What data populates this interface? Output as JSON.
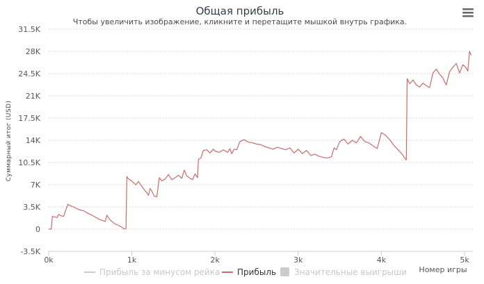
{
  "chart_data": {
    "type": "line",
    "title": "Общая прибыль",
    "subtitle": "Чтобы увеличить изображение, кликните и перетащите мышкой внутрь графика.",
    "ylabel": "Суммарный итог (USD)",
    "xlabel": "Номер игры",
    "ylim": [
      -3500,
      31500
    ],
    "xlim": [
      0,
      5100
    ],
    "y_ticks": [
      -3500,
      0,
      3500,
      7000,
      10500,
      14000,
      17500,
      21000,
      24500,
      28000,
      31500
    ],
    "y_tick_labels": [
      "-3.5K",
      "0",
      "3.5K",
      "7K",
      "10.5K",
      "14K",
      "17.5K",
      "21K",
      "24.5K",
      "28K",
      "31.5K"
    ],
    "x_ticks": [
      0,
      1000,
      2000,
      3000,
      4000,
      5000
    ],
    "x_tick_labels": [
      "0k",
      "1k",
      "2k",
      "3k",
      "4k",
      "5k"
    ],
    "grid": "horizontal dotted",
    "legend_position": "bottom",
    "legend": [
      {
        "label": "Прибыль за минусом рейка",
        "active": false,
        "marker": "line"
      },
      {
        "label": "Прибыль",
        "active": true,
        "marker": "line"
      },
      {
        "label": "Значительные выигрыши",
        "active": false,
        "marker": "square"
      }
    ],
    "series": [
      {
        "name": "Прибыль",
        "color": "#c96b6b",
        "x": [
          0,
          30,
          45,
          80,
          100,
          120,
          150,
          180,
          200,
          230,
          260,
          300,
          340,
          380,
          420,
          470,
          520,
          560,
          600,
          640,
          680,
          700,
          730,
          760,
          800,
          840,
          880,
          910,
          930,
          940,
          960,
          990,
          1020,
          1050,
          1080,
          1110,
          1140,
          1160,
          1180,
          1200,
          1220,
          1240,
          1270,
          1300,
          1330,
          1360,
          1400,
          1440,
          1480,
          1520,
          1560,
          1600,
          1630,
          1660,
          1700,
          1730,
          1760,
          1790,
          1800,
          1830,
          1860,
          1900,
          1940,
          1980,
          2000,
          2050,
          2100,
          2150,
          2180,
          2200,
          2230,
          2260,
          2300,
          2350,
          2400,
          2450,
          2500,
          2550,
          2600,
          2650,
          2700,
          2750,
          2800,
          2850,
          2900,
          2950,
          3000,
          3050,
          3100,
          3150,
          3200,
          3250,
          3300,
          3350,
          3400,
          3430,
          3460,
          3500,
          3550,
          3600,
          3650,
          3700,
          3750,
          3800,
          3850,
          3900,
          3950,
          4000,
          4050,
          4100,
          4150,
          4200,
          4250,
          4280,
          4300,
          4310,
          4340,
          4380,
          4420,
          4460,
          4500,
          4540,
          4580,
          4620,
          4660,
          4700,
          4740,
          4780,
          4820,
          4860,
          4900,
          4940,
          4980,
          5020,
          5040,
          5060,
          5080
        ],
        "values": [
          0,
          0,
          2000,
          1900,
          1800,
          2300,
          2100,
          2000,
          2800,
          3900,
          3700,
          3500,
          3200,
          3000,
          2900,
          2500,
          2200,
          1900,
          1600,
          1400,
          1200,
          2200,
          1600,
          1200,
          800,
          600,
          300,
          0,
          100,
          8300,
          7900,
          7700,
          7300,
          7000,
          7500,
          6900,
          6400,
          6000,
          5800,
          5300,
          6400,
          6000,
          5200,
          5100,
          8100,
          7600,
          7900,
          8600,
          7800,
          8100,
          8500,
          8000,
          9300,
          8400,
          8000,
          7800,
          8700,
          8100,
          11000,
          11200,
          12400,
          12500,
          12000,
          12600,
          12300,
          12100,
          12500,
          12100,
          12700,
          11900,
          12600,
          12500,
          13800,
          14100,
          13700,
          13600,
          13400,
          13300,
          13000,
          12800,
          12600,
          12900,
          12700,
          12500,
          12800,
          12000,
          12600,
          11900,
          12400,
          11600,
          11800,
          11500,
          11300,
          11200,
          11400,
          12800,
          12500,
          13800,
          14200,
          13400,
          14000,
          13600,
          14600,
          13800,
          13600,
          13100,
          12700,
          15200,
          14800,
          14100,
          13200,
          12500,
          11800,
          11200,
          10900,
          23700,
          22900,
          23500,
          22700,
          22400,
          23000,
          22600,
          22300,
          24600,
          25200,
          24400,
          23800,
          22700,
          24800,
          25500,
          26100,
          24600,
          25900,
          25400,
          24900,
          28000,
          27400
        ]
      }
    ]
  }
}
